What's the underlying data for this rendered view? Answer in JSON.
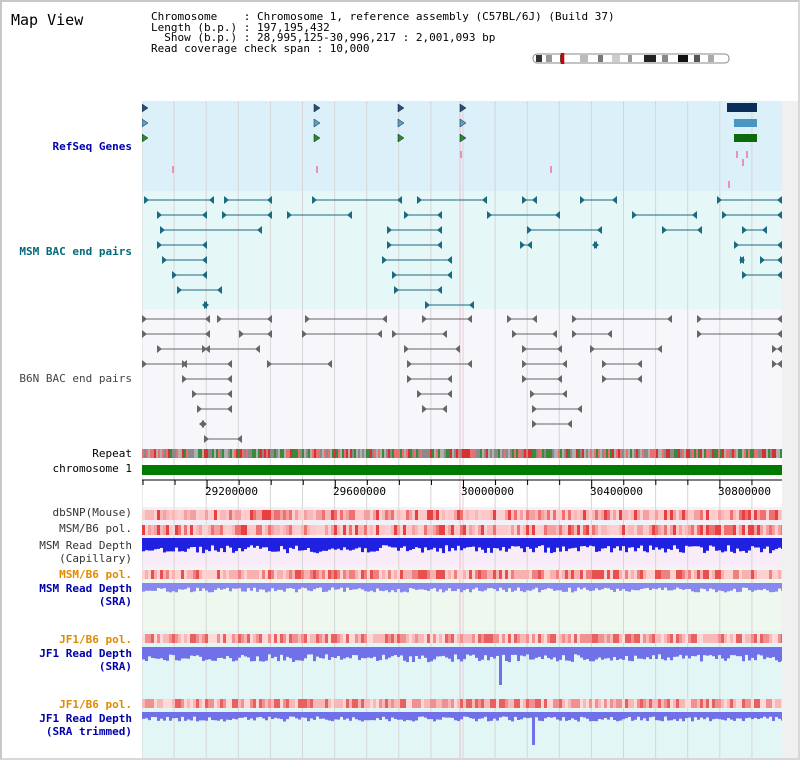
{
  "title": "Map View",
  "info": {
    "line1": "Chromosome    : Chromosome 1, reference assembly (C57BL/6J) (Build 37)",
    "line2": "Length (b.p.) : 197,195,432",
    "line3": "  Show (b.p.) : 28,995,125-30,996,217 : 2,001,093 bp",
    "line4": "Read coverage check span : 10,000"
  },
  "tracks": {
    "refseq": "RefSeq Genes",
    "msm_bac": "MSM BAC end pairs",
    "b6n_bac": "B6N BAC end pairs",
    "repeat": "Repeat",
    "chromosome": "chromosome 1",
    "dbsnp": "dbSNP(Mouse)",
    "msm_b6_pol": "MSM/B6 pol.",
    "msm_depth_cap": "MSM Read Depth\n(Capillary)",
    "msm_b6_pol2": "MSM/B6 pol.",
    "msm_depth_sra": "MSM Read Depth\n(SRA)",
    "jf1_b6_pol": "JF1/B6 pol.",
    "jf1_depth_sra": "JF1 Read Depth\n(SRA)",
    "jf1_b6_pol2": "JF1/B6 pol.",
    "jf1_depth_trim": "JF1 Read Depth\n(SRA trimmed)"
  },
  "axis": {
    "ticks": [
      "29200000",
      "29600000",
      "30000000",
      "30400000",
      "30800000"
    ]
  },
  "colors": {
    "refseq_bg": "#dcf0fa",
    "msm_bg": "#e6f7f7",
    "b6n_bg": "#f7f7fb",
    "chrom": "#007a00",
    "label_blue": "#0000aa",
    "label_teal": "#006a7a",
    "label_orange": "#e08a00"
  }
}
